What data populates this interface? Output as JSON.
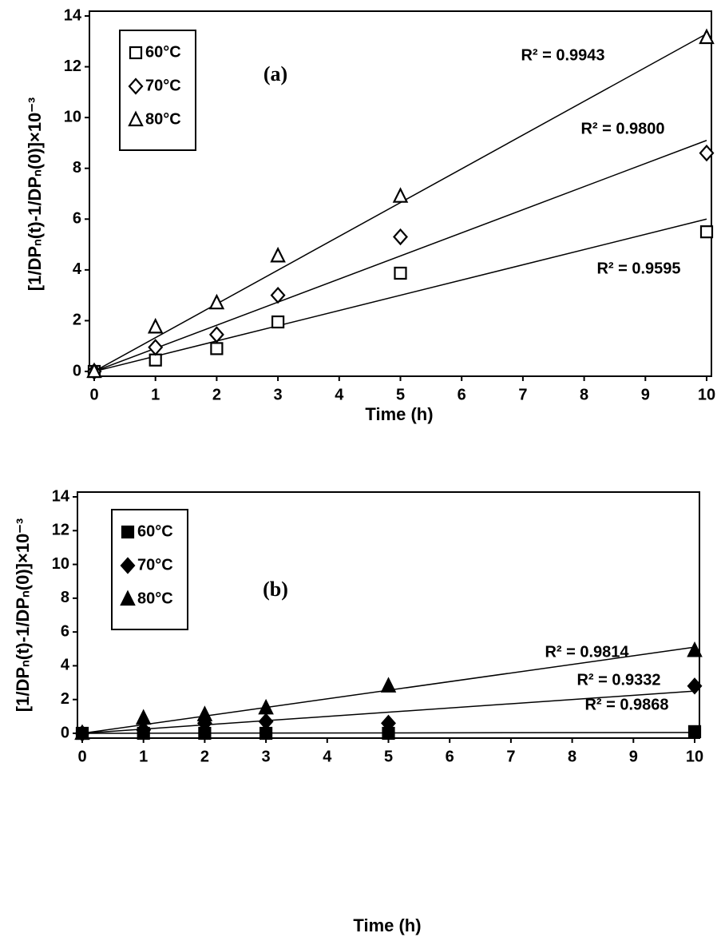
{
  "chart_data": [
    {
      "type": "scatter",
      "title": "(a)",
      "x_label": "Time (h)",
      "y_label": "[1/DPₙ(t)-1/DPₙ(0)]×10⁻³",
      "x": [
        0,
        1,
        2,
        3,
        5,
        10
      ],
      "xlim": [
        0,
        10
      ],
      "xticks": [
        0,
        1,
        2,
        3,
        4,
        5,
        6,
        7,
        8,
        9,
        10
      ],
      "ylim": [
        0,
        14
      ],
      "yticks": [
        0,
        2,
        4,
        6,
        8,
        10,
        12,
        14
      ],
      "filled": false,
      "legend": "upper left",
      "series": [
        {
          "name": "60°C",
          "marker": "square",
          "color": "#000000",
          "values": [
            0,
            0.45,
            0.9,
            1.95,
            3.87,
            5.5
          ],
          "trend": [
            0,
            6.0
          ],
          "annotation": "R² = 0.9595"
        },
        {
          "name": "70°C",
          "marker": "diamond",
          "color": "#000000",
          "values": [
            0,
            0.95,
            1.45,
            3.0,
            5.3,
            8.6
          ],
          "trend": [
            0,
            9.1
          ],
          "annotation": "R² = 0.9800"
        },
        {
          "name": "80°C",
          "marker": "triangle",
          "color": "#000000",
          "values": [
            0,
            1.75,
            2.7,
            4.55,
            6.9,
            13.15
          ],
          "trend": [
            0,
            13.3
          ],
          "annotation": "R² = 0.9943"
        }
      ]
    },
    {
      "type": "scatter",
      "title": "(b)",
      "x_label": "Time (h)",
      "y_label": "[1/DPₙ(t)-1/DPₙ(0)]×10⁻³",
      "x": [
        0,
        1,
        2,
        3,
        5,
        10
      ],
      "xlim": [
        0,
        10
      ],
      "xticks": [
        0,
        1,
        2,
        3,
        4,
        5,
        6,
        7,
        8,
        9,
        10
      ],
      "ylim": [
        0,
        14
      ],
      "yticks": [
        0,
        2,
        4,
        6,
        8,
        10,
        12,
        14
      ],
      "filled": true,
      "legend": "upper left",
      "series": [
        {
          "name": "60°C",
          "marker": "square",
          "color": "#000000",
          "values": [
            0,
            0,
            0,
            0,
            0,
            0.1
          ],
          "trend": [
            0,
            0.05
          ],
          "annotation": "R² = 0.9868"
        },
        {
          "name": "70°C",
          "marker": "diamond",
          "color": "#000000",
          "values": [
            0,
            0.2,
            0.6,
            0.7,
            0.6,
            2.8
          ],
          "trend": [
            0,
            2.5
          ],
          "annotation": "R² = 0.9332"
        },
        {
          "name": "80°C",
          "marker": "triangle",
          "color": "#000000",
          "values": [
            0,
            0.9,
            1.1,
            1.5,
            2.8,
            4.9
          ],
          "trend": [
            0,
            5.1
          ],
          "annotation": "R² = 0.9814"
        }
      ]
    }
  ]
}
